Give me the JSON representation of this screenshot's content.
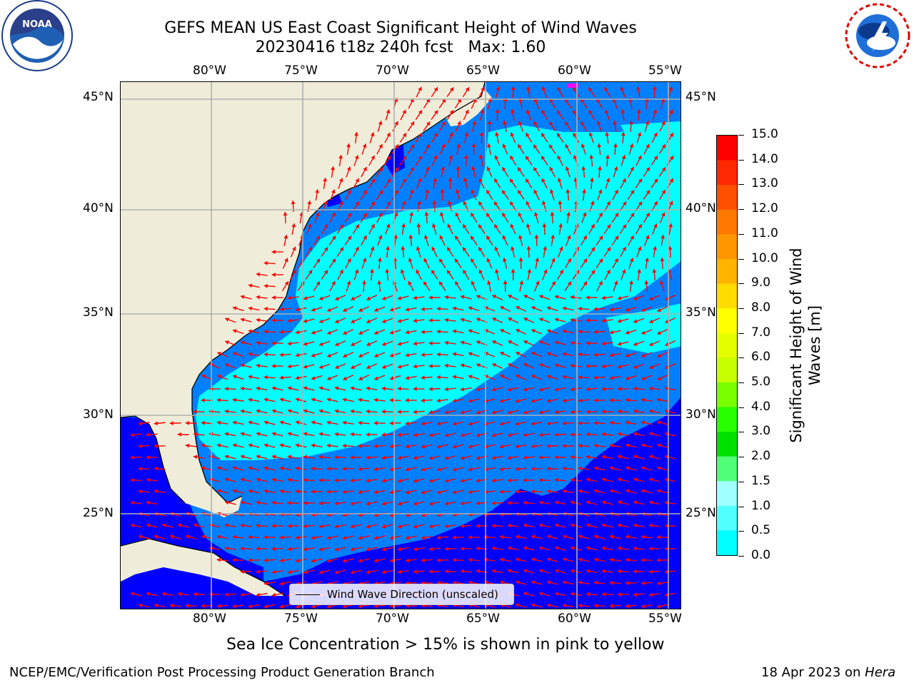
{
  "header": {
    "title": "GEFS MEAN US East Coast Significant Height of Wind Waves",
    "run": "20230416 t18z 240h fcst",
    "max": "Max: 1.60"
  },
  "logos": {
    "left": "noaa-logo",
    "right": "nws-logo"
  },
  "map": {
    "lon_labels": [
      "80°W",
      "75°W",
      "70°W",
      "65°W",
      "60°W",
      "55°W"
    ],
    "lat_labels": [
      "45°N",
      "40°N",
      "35°N",
      "30°N",
      "25°N"
    ],
    "legend_label": "Wind Wave Direction (unscaled)",
    "colors": {
      "land": "#efedd9",
      "arrow": "#ff0000",
      "grid": "#b0b0b0",
      "ice": "#ff00ff"
    }
  },
  "colorbar": {
    "levels": [
      "15.0",
      "14.0",
      "13.0",
      "12.0",
      "11.0",
      "10.0",
      "9.0",
      "8.0",
      "7.0",
      "6.0",
      "5.0",
      "4.0",
      "3.0",
      "2.0",
      "1.5",
      "1.0",
      "0.5",
      "0.0"
    ],
    "colors_top_to_bottom": [
      "#ff0000",
      "#ff2800",
      "#ff5000",
      "#ff7800",
      "#ff9600",
      "#ffb400",
      "#ffdc00",
      "#ffff00",
      "#e6ff00",
      "#c8ff00",
      "#78ff00",
      "#28ff00",
      "#00e100",
      "#50ff78",
      "#a0ffff",
      "#50ffff",
      "#00ffff",
      "#0080ff",
      "#0000ff"
    ],
    "title": "Significant Height of Wind Waves [m]"
  },
  "note": "Sea Ice Concentration > 15% is shown in pink to yellow",
  "footer": {
    "left": "NCEP/EMC/Verification Post Processing Product Generation Branch",
    "date": "18 Apr 2023 on ",
    "machine": "Hera"
  }
}
